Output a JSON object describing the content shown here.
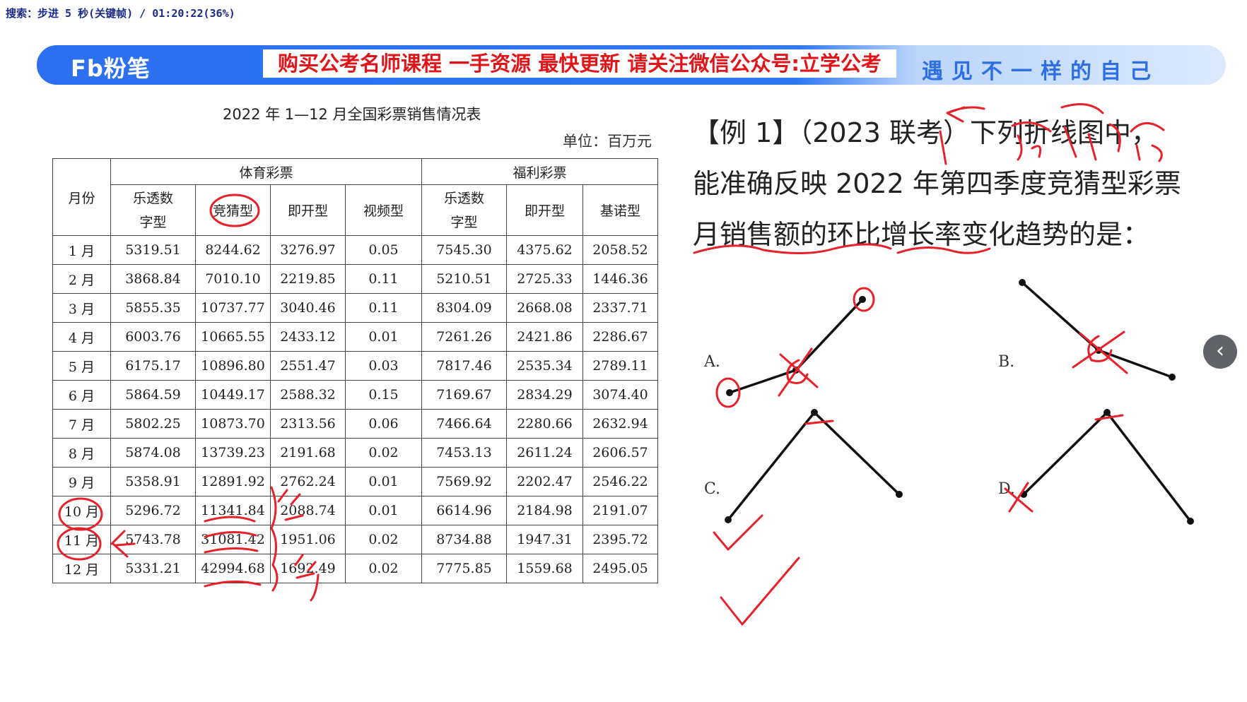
{
  "status_line": "搜索：步进 5 秒(关键帧) / 01:20:22(36%)",
  "banner": {
    "logo": "Fb粉笔",
    "ad": "购买公考名师课程 一手资源 最快更新 请关注微信公众号:立学公考",
    "slogan": "遇见不一样的自己"
  },
  "table": {
    "title": "2022 年 1—12 月全国彩票销售情况表",
    "unit": "单位：百万元",
    "month_header": "月份",
    "group_sports": "体育彩票",
    "group_welfare": "福利彩票",
    "columns": [
      "乐透数字型",
      "竞猜型",
      "即开型",
      "视频型",
      "乐透数字型",
      "即开型",
      "基诺型"
    ],
    "rows": [
      [
        "1 月",
        "5319.51",
        "8244.62",
        "3276.97",
        "0.05",
        "7545.30",
        "4375.62",
        "2058.52"
      ],
      [
        "2 月",
        "3868.84",
        "7010.10",
        "2219.85",
        "0.11",
        "5210.51",
        "2725.33",
        "1446.36"
      ],
      [
        "3 月",
        "5855.35",
        "10737.77",
        "3040.46",
        "0.11",
        "8304.09",
        "2668.08",
        "2337.71"
      ],
      [
        "4 月",
        "6003.76",
        "10665.55",
        "2433.12",
        "0.01",
        "7261.26",
        "2421.86",
        "2286.67"
      ],
      [
        "5 月",
        "6175.17",
        "10896.80",
        "2551.47",
        "0.03",
        "7817.46",
        "2535.34",
        "2789.11"
      ],
      [
        "6 月",
        "5864.59",
        "10449.17",
        "2588.32",
        "0.15",
        "7169.67",
        "2834.29",
        "3074.40"
      ],
      [
        "7 月",
        "5802.25",
        "10873.70",
        "2313.56",
        "0.06",
        "7466.64",
        "2280.66",
        "2632.94"
      ],
      [
        "8 月",
        "5874.08",
        "13739.23",
        "2191.68",
        "0.02",
        "7453.13",
        "2611.24",
        "2606.57"
      ],
      [
        "9 月",
        "5358.91",
        "12891.92",
        "2762.24",
        "0.01",
        "7569.92",
        "2202.47",
        "2546.22"
      ],
      [
        "10 月",
        "5296.72",
        "11341.84",
        "2088.74",
        "0.01",
        "6614.96",
        "2184.98",
        "2191.07"
      ],
      [
        "11 月",
        "5743.78",
        "31081.42",
        "1951.06",
        "0.02",
        "8734.88",
        "1947.31",
        "2395.72"
      ],
      [
        "12 月",
        "5331.21",
        "42994.68",
        "1692.49",
        "0.02",
        "7775.85",
        "1559.68",
        "2495.05"
      ]
    ]
  },
  "question": {
    "line1": "【例 1】（2023 联考）下列折线图中，",
    "line2": "能准确反映 2022 年第四季度竞猜型彩票",
    "line3": "月销售额的环比增长率变化趋势的是："
  },
  "options": {
    "a": "A.",
    "b": "B.",
    "c": "C.",
    "d": "D."
  },
  "nav": {
    "prev_icon": "chevron-left-icon"
  },
  "colors": {
    "banner": "#2c6ff0",
    "ad_text": "#e0151a",
    "ink": "#e8202a"
  }
}
